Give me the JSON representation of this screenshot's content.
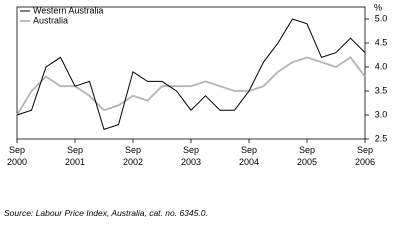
{
  "chart_data": {
    "type": "line",
    "y_label": "%",
    "categories": [
      "Sep 2000",
      null,
      null,
      null,
      "Sep 2001",
      null,
      null,
      null,
      "Sep 2002",
      null,
      null,
      null,
      "Sep 2003",
      null,
      null,
      null,
      "Sep 2004",
      null,
      null,
      null,
      "Sep 2005",
      null,
      null,
      null,
      "Sep 2006"
    ],
    "series": [
      {
        "name": "Western Australia",
        "color": "#000000",
        "values": [
          3.0,
          3.1,
          4.0,
          4.2,
          3.6,
          3.7,
          2.7,
          2.8,
          3.9,
          3.7,
          3.7,
          3.5,
          3.1,
          3.4,
          3.1,
          3.1,
          3.5,
          4.1,
          4.5,
          5.0,
          4.9,
          4.2,
          4.3,
          4.6,
          4.3
        ]
      },
      {
        "name": "Australia",
        "color": "#b4b4b4",
        "values": [
          3.0,
          3.5,
          3.8,
          3.6,
          3.6,
          3.4,
          3.1,
          3.2,
          3.4,
          3.3,
          3.6,
          3.6,
          3.6,
          3.7,
          3.6,
          3.5,
          3.5,
          3.6,
          3.9,
          4.1,
          4.2,
          4.1,
          4.0,
          4.2,
          3.8
        ]
      }
    ],
    "ylim": [
      2.5,
      5.0
    ],
    "yticks": [
      {
        "value": 2.5,
        "label": "2.5"
      },
      {
        "value": 3.0,
        "label": "3.0"
      },
      {
        "value": 3.5,
        "label": "3.5"
      },
      {
        "value": 4.0,
        "label": "4.0"
      },
      {
        "value": 4.5,
        "label": "4.5"
      },
      {
        "value": 5.0,
        "label": "5.0"
      }
    ],
    "legend": "top-left",
    "source": "Source: Labour Price Index, Australia, cat. no. 6345.0."
  }
}
